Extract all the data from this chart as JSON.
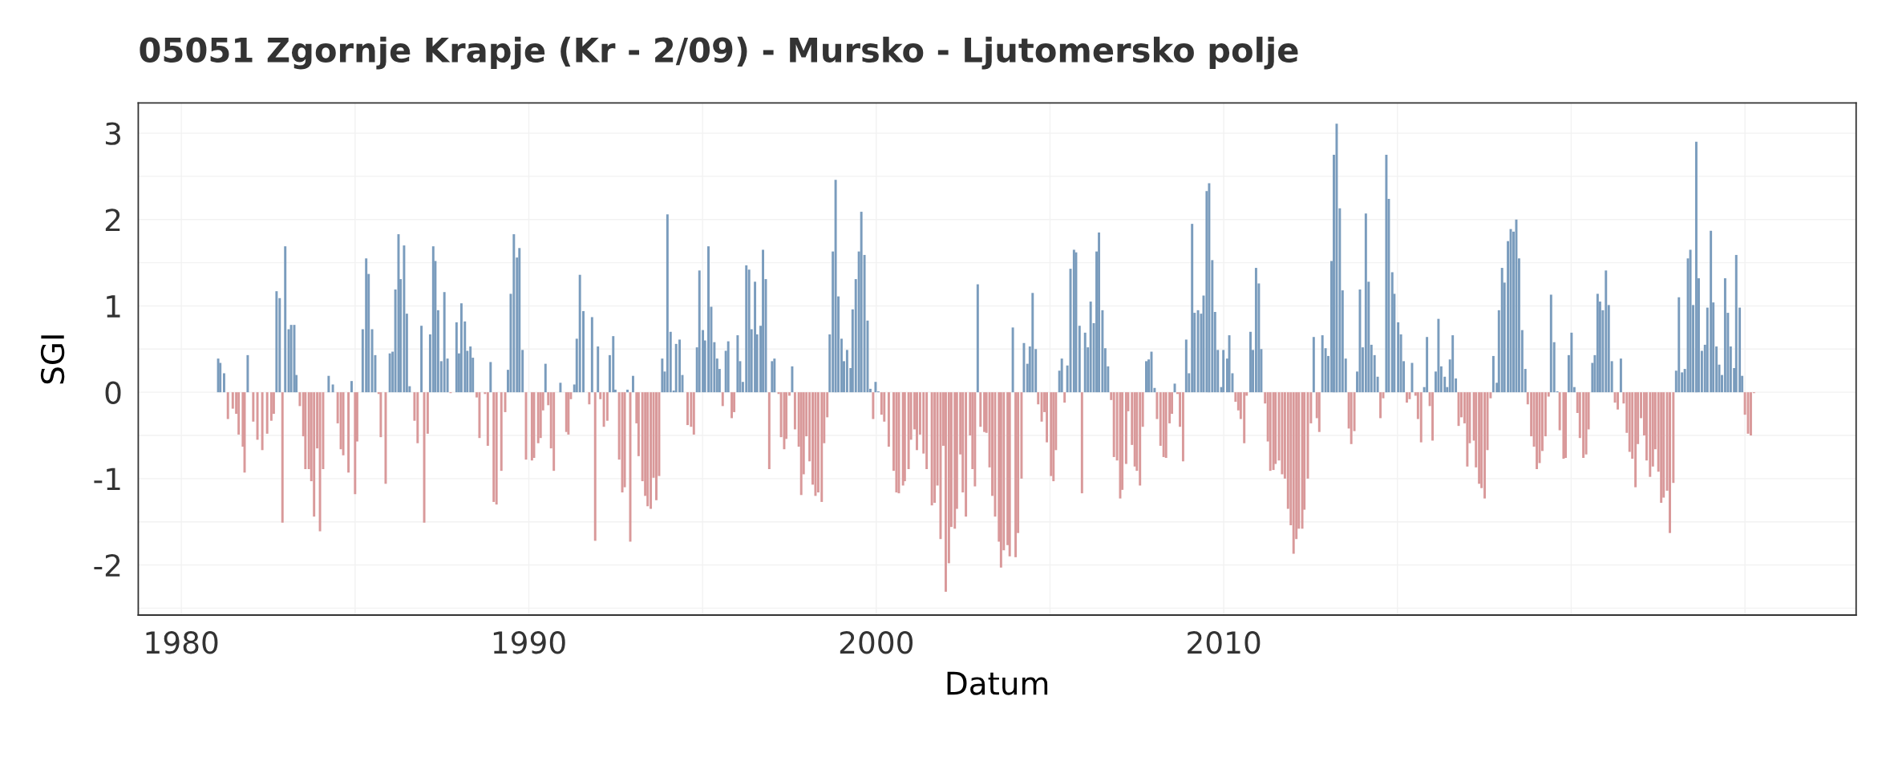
{
  "chart_data": {
    "type": "bar",
    "title": "05051 Zgornje Krapje (Kr - 2/09) - Mursko - Ljutomersko polje",
    "xlabel": "Datum",
    "ylabel": "SGI",
    "xlim": [
      1978.76,
      2028.2
    ],
    "xticks": [
      1980,
      {
        "value": 1985,
        "label": null
      },
      1990,
      {
        "value": 1995,
        "label": null
      },
      2000,
      {
        "value": 2005,
        "label": null
      },
      2010,
      {
        "value": 2015,
        "label": null
      },
      {
        "value": 2020,
        "label": null
      },
      {
        "value": 2025,
        "label": null
      }
    ],
    "ylim": [
      -2.58,
      3.35
    ],
    "yticks": [
      {
        "value": -2.5,
        "label": null
      },
      {
        "value": -2,
        "label": "-2"
      },
      {
        "value": -1.5,
        "label": null
      },
      {
        "value": -1,
        "label": "-1"
      },
      {
        "value": -0.5,
        "label": null
      },
      0,
      {
        "value": 0.5,
        "label": null
      },
      1,
      {
        "value": 1.5,
        "label": null
      },
      2,
      {
        "value": 2.5,
        "label": null
      },
      3
    ],
    "grid": true,
    "series": [
      {
        "color": "#7a9cbd",
        "x": [
          1981.06,
          1981.12,
          1981.23,
          1981.91,
          1982.74,
          1982.83,
          1982.99,
          1983.09,
          1983.16,
          1983.25,
          1983.31,
          1984.24,
          1984.36,
          1984.9,
          1985.22,
          1985.32,
          1985.39,
          1985.49,
          1985.58,
          1986.0,
          1986.08,
          1986.16,
          1986.25,
          1986.31,
          1986.41,
          1986.49,
          1986.57,
          1986.91,
          1987.16,
          1987.25,
          1987.31,
          1987.39,
          1987.48,
          1987.57,
          1987.66,
          1987.92,
          1987.99,
          1988.06,
          1988.16,
          1988.23,
          1988.32,
          1988.39,
          1988.9,
          1989.4,
          1989.48,
          1989.57,
          1989.66,
          1989.73,
          1989.82,
          1990.48,
          1990.91,
          1991.31,
          1991.38,
          1991.47,
          1991.57,
          1991.82,
          1991.99,
          1992.33,
          1992.43,
          1992.49,
          1992.84,
          1993.0,
          1993.84,
          1993.91,
          1993.99,
          1994.08,
          1994.17,
          1994.24,
          1994.34,
          1994.42,
          1994.84,
          1994.91,
          1995.01,
          1995.07,
          1995.17,
          1995.25,
          1995.34,
          1995.42,
          1995.49,
          1995.67,
          1995.74,
          1996.01,
          1996.08,
          1996.16,
          1996.26,
          1996.34,
          1996.41,
          1996.51,
          1996.57,
          1996.67,
          1996.74,
          1996.82,
          1997.0,
          1997.07,
          1997.58,
          1998.66,
          1998.75,
          1998.83,
          1998.91,
          1999.0,
          1999.07,
          1999.16,
          1999.26,
          1999.32,
          1999.41,
          1999.5,
          1999.57,
          1999.66,
          1999.75,
          1999.83,
          1999.98,
          2000.06,
          2002.92,
          2003.93,
          2004.25,
          2004.35,
          2004.42,
          2004.5,
          2004.59,
          2005.27,
          2005.34,
          2005.5,
          2005.59,
          2005.69,
          2005.75,
          2005.85,
          2006.01,
          2006.09,
          2006.17,
          2006.26,
          2006.34,
          2006.41,
          2006.51,
          2006.59,
          2006.67,
          2007.77,
          2007.84,
          2007.92,
          2008.01,
          2008.59,
          2008.92,
          2009.0,
          2009.09,
          2009.16,
          2009.26,
          2009.35,
          2009.42,
          2009.51,
          2009.58,
          2009.67,
          2009.75,
          2009.83,
          2009.93,
          2009.99,
          2010.1,
          2010.16,
          2010.25,
          2010.77,
          2010.84,
          2010.93,
          2011.01,
          2011.08,
          2012.59,
          2012.84,
          2012.93,
          2013.01,
          2013.1,
          2013.17,
          2013.25,
          2013.34,
          2013.42,
          2013.51,
          2013.84,
          2013.92,
          2014.0,
          2014.09,
          2014.17,
          2014.25,
          2014.34,
          2014.43,
          2014.68,
          2014.75,
          2014.85,
          2014.91,
          2015.02,
          2015.1,
          2015.18,
          2015.42,
          2015.77,
          2015.85,
          2016.1,
          2016.18,
          2016.26,
          2016.36,
          2016.43,
          2016.51,
          2016.59,
          2016.68,
          2017.76,
          2017.86,
          2017.92,
          2018.01,
          2018.08,
          2018.18,
          2018.26,
          2018.34,
          2018.42,
          2018.5,
          2018.59,
          2018.68,
          2019.42,
          2019.51,
          2019.6,
          2019.93,
          2020.01,
          2020.09,
          2020.61,
          2020.68,
          2020.76,
          2020.83,
          2020.91,
          2021.0,
          2021.08,
          2021.17,
          2021.43,
          2023.02,
          2023.1,
          2023.19,
          2023.27,
          2023.36,
          2023.43,
          2023.51,
          2023.6,
          2023.67,
          2023.76,
          2023.85,
          2023.92,
          2024.02,
          2024.09,
          2024.18,
          2024.26,
          2024.34,
          2024.43,
          2024.51,
          2024.59,
          2024.69,
          2024.75,
          2024.85,
          2024.92
        ],
        "values": [
          0.39,
          0.34,
          0.22,
          0.43,
          1.17,
          1.09,
          1.69,
          0.73,
          0.78,
          0.78,
          0.2,
          0.19,
          0.09,
          0.13,
          0.73,
          1.55,
          1.37,
          0.73,
          0.43,
          0.45,
          0.47,
          1.19,
          1.83,
          1.31,
          1.7,
          0.91,
          0.07,
          0.77,
          0.67,
          1.69,
          1.52,
          0.95,
          0.36,
          1.16,
          0.39,
          0.81,
          0.45,
          1.03,
          0.82,
          0.48,
          0.53,
          0.4,
          0.35,
          0.26,
          1.14,
          1.83,
          1.56,
          1.67,
          0.49,
          0.33,
          0.11,
          0.09,
          0.62,
          1.36,
          0.94,
          0.87,
          0.53,
          0.43,
          0.65,
          0.03,
          0.03,
          0.19,
          0.39,
          0.24,
          2.06,
          0.7,
          0.02,
          0.56,
          0.61,
          0.2,
          0.52,
          1.41,
          0.72,
          0.6,
          1.69,
          0.99,
          0.58,
          0.39,
          0.27,
          0.48,
          0.59,
          0.66,
          0.36,
          0.12,
          1.47,
          1.42,
          0.73,
          1.28,
          0.67,
          0.77,
          1.65,
          1.31,
          0.36,
          0.39,
          0.3,
          0.67,
          1.63,
          2.46,
          1.11,
          0.62,
          0.36,
          0.49,
          0.28,
          0.96,
          1.31,
          1.63,
          2.09,
          1.59,
          0.83,
          0.04,
          0.12,
          0.01,
          1.25,
          0.75,
          0.57,
          0.33,
          0.53,
          1.15,
          0.5,
          0.25,
          0.39,
          0.31,
          1.43,
          1.65,
          1.62,
          0.77,
          0.69,
          0.52,
          1.05,
          0.8,
          1.63,
          1.85,
          0.95,
          0.51,
          0.3,
          0.36,
          0.38,
          0.47,
          0.05,
          0.1,
          0.61,
          0.22,
          1.95,
          0.92,
          0.95,
          0.91,
          1.12,
          2.33,
          2.42,
          1.53,
          0.93,
          0.49,
          0.06,
          0.49,
          0.39,
          0.66,
          0.22,
          0.7,
          0.49,
          1.44,
          1.26,
          0.5,
          0.64,
          0.66,
          0.51,
          0.42,
          1.52,
          2.75,
          3.11,
          2.13,
          1.18,
          0.39,
          0.24,
          1.19,
          0.52,
          2.07,
          1.28,
          0.55,
          0.43,
          0.18,
          2.75,
          2.24,
          1.39,
          1.14,
          0.81,
          0.67,
          0.36,
          0.34,
          0.06,
          0.64,
          0.24,
          0.85,
          0.3,
          0.18,
          0.06,
          0.38,
          0.66,
          0.16,
          0.42,
          0.11,
          0.95,
          1.44,
          1.27,
          1.75,
          1.89,
          1.86,
          2.0,
          1.55,
          0.72,
          0.27,
          1.13,
          0.58,
          0.01,
          0.43,
          0.69,
          0.06,
          0.34,
          0.43,
          1.14,
          1.05,
          0.95,
          1.41,
          1.01,
          0.36,
          0.39,
          0.25,
          1.1,
          0.23,
          0.27,
          1.55,
          1.65,
          1.01,
          2.9,
          1.32,
          0.48,
          0.55,
          0.98,
          1.87,
          1.04,
          0.53,
          0.32,
          0.2,
          1.32,
          0.92,
          0.53,
          0.28,
          1.59,
          0.98,
          0.19
        ]
      },
      {
        "color": "#d9999a",
        "x": [
          1981.34,
          1981.48,
          1981.58,
          1981.65,
          1981.77,
          1981.82,
          1982.07,
          1982.19,
          1982.33,
          1982.47,
          1982.59,
          1982.66,
          1982.91,
          1983.41,
          1983.51,
          1983.57,
          1983.67,
          1983.74,
          1983.82,
          1983.91,
          1983.99,
          1984.08,
          1984.5,
          1984.59,
          1984.66,
          1984.81,
          1985.0,
          1985.06,
          1985.68,
          1985.74,
          1985.88,
          1986.71,
          1986.8,
          1986.99,
          1987.09,
          1987.75,
          1988.5,
          1988.58,
          1988.74,
          1988.82,
          1988.99,
          1989.07,
          1989.21,
          1989.32,
          1989.92,
          1990.09,
          1990.15,
          1990.27,
          1990.34,
          1990.41,
          1990.56,
          1990.64,
          1990.72,
          1991.08,
          1991.14,
          1991.21,
          1991.74,
          1991.91,
          1992.06,
          1992.16,
          1992.26,
          1992.6,
          1992.69,
          1992.76,
          1992.92,
          1993.1,
          1993.16,
          1993.27,
          1993.35,
          1993.42,
          1993.51,
          1993.59,
          1993.67,
          1993.75,
          1994.57,
          1994.67,
          1994.75,
          1995.58,
          1995.84,
          1995.91,
          1996.92,
          1997.19,
          1997.26,
          1997.35,
          1997.41,
          1997.5,
          1997.66,
          1997.77,
          1997.84,
          1997.91,
          1997.99,
          1998.08,
          1998.17,
          1998.25,
          1998.33,
          1998.43,
          1998.5,
          1998.59,
          1999.91,
          2000.15,
          2000.23,
          2000.36,
          2000.5,
          2000.58,
          2000.65,
          2000.77,
          2000.82,
          2000.93,
          2001.0,
          2001.1,
          2001.17,
          2001.26,
          2001.36,
          2001.45,
          2001.6,
          2001.68,
          2001.76,
          2001.85,
          2001.93,
          2002.0,
          2002.09,
          2002.16,
          2002.26,
          2002.32,
          2002.42,
          2002.49,
          2002.58,
          2002.7,
          2002.77,
          2002.84,
          2003.0,
          2003.11,
          2003.17,
          2003.26,
          2003.34,
          2003.42,
          2003.53,
          2003.59,
          2003.67,
          2003.78,
          2003.84,
          2004.01,
          2004.08,
          2004.18,
          2004.66,
          2004.76,
          2004.84,
          2004.91,
          2005.03,
          2005.1,
          2005.17,
          2005.42,
          2005.92,
          2006.76,
          2006.84,
          2006.93,
          2007.02,
          2007.08,
          2007.19,
          2007.25,
          2007.36,
          2007.44,
          2007.5,
          2007.59,
          2007.67,
          2008.08,
          2008.18,
          2008.27,
          2008.34,
          2008.44,
          2008.51,
          2008.67,
          2008.74,
          2008.83,
          2010.34,
          2010.42,
          2010.49,
          2010.59,
          2010.66,
          2011.19,
          2011.27,
          2011.34,
          2011.43,
          2011.49,
          2011.59,
          2011.68,
          2011.76,
          2011.85,
          2011.93,
          2012.01,
          2012.09,
          2012.16,
          2012.26,
          2012.32,
          2012.42,
          2012.51,
          2012.68,
          2012.75,
          2013.6,
          2013.67,
          2013.76,
          2014.51,
          2014.59,
          2015.27,
          2015.35,
          2015.52,
          2015.59,
          2015.68,
          2015.93,
          2016.01,
          2016.76,
          2016.84,
          2016.93,
          2017.01,
          2017.08,
          2017.2,
          2017.26,
          2017.35,
          2017.42,
          2017.51,
          2017.59,
          2017.68,
          2018.75,
          2018.85,
          2018.93,
          2019.01,
          2019.09,
          2019.17,
          2019.26,
          2019.35,
          2019.67,
          2019.78,
          2019.84,
          2020.18,
          2020.25,
          2020.35,
          2020.43,
          2020.5,
          2021.26,
          2021.34,
          2021.51,
          2021.6,
          2021.68,
          2021.76,
          2021.85,
          2021.92,
          2022.01,
          2022.1,
          2022.17,
          2022.27,
          2022.35,
          2022.42,
          2022.51,
          2022.59,
          2022.66,
          2022.76,
          2022.84,
          2022.94,
          2025.0,
          2025.09,
          2025.17,
          2025.26
        ],
        "values": [
          -0.31,
          -0.19,
          -0.25,
          -0.49,
          -0.63,
          -0.93,
          -0.34,
          -0.55,
          -0.67,
          -0.48,
          -0.33,
          -0.25,
          -1.51,
          -0.16,
          -0.51,
          -0.89,
          -0.89,
          -1.03,
          -1.44,
          -0.65,
          -1.61,
          -0.89,
          -0.36,
          -0.66,
          -0.73,
          -0.93,
          -1.18,
          -0.57,
          -0.02,
          -0.52,
          -1.06,
          -0.33,
          -0.59,
          -1.51,
          -0.48,
          -0.01,
          -0.06,
          -0.53,
          -0.02,
          -0.62,
          -1.27,
          -1.3,
          -0.91,
          -0.23,
          -0.78,
          -0.79,
          -0.76,
          -0.59,
          -0.53,
          -0.21,
          -0.15,
          -0.65,
          -0.91,
          -0.46,
          -0.49,
          -0.08,
          -0.14,
          -1.72,
          -0.08,
          -0.4,
          -0.33,
          -0.78,
          -1.16,
          -1.1,
          -1.73,
          -0.36,
          -0.74,
          -1.03,
          -1.2,
          -1.32,
          -1.35,
          -0.99,
          -1.25,
          -0.97,
          -0.38,
          -0.4,
          -0.49,
          -0.16,
          -0.3,
          -0.23,
          -0.89,
          -0.02,
          -0.52,
          -0.66,
          -0.54,
          -0.04,
          -0.43,
          -0.63,
          -1.19,
          -0.95,
          -0.51,
          -0.8,
          -1.07,
          -1.2,
          -1.16,
          -1.27,
          -0.59,
          -0.29,
          -0.31,
          -0.26,
          -0.34,
          -0.63,
          -0.91,
          -1.16,
          -1.17,
          -1.08,
          -1.03,
          -0.89,
          -0.55,
          -0.43,
          -0.67,
          -0.49,
          -0.71,
          -0.89,
          -1.31,
          -1.28,
          -1.08,
          -1.7,
          -0.62,
          -2.31,
          -1.98,
          -1.56,
          -1.58,
          -1.35,
          -0.72,
          -1.16,
          -1.44,
          -0.5,
          -0.89,
          -1.09,
          -0.4,
          -0.46,
          -0.47,
          -0.87,
          -1.2,
          -1.44,
          -1.73,
          -2.03,
          -1.83,
          -1.77,
          -1.9,
          -1.91,
          -1.63,
          -1.0,
          -0.14,
          -0.34,
          -0.23,
          -0.58,
          -0.97,
          -1.03,
          -0.67,
          -0.12,
          -1.17,
          -0.09,
          -0.75,
          -0.79,
          -1.23,
          -1.13,
          -0.83,
          -0.22,
          -0.61,
          -0.86,
          -0.91,
          -1.08,
          -0.4,
          -0.31,
          -0.62,
          -0.75,
          -0.76,
          -0.36,
          -0.25,
          -0.02,
          -0.4,
          -0.8,
          -0.11,
          -0.21,
          -0.31,
          -0.59,
          -0.04,
          -0.13,
          -0.57,
          -0.91,
          -0.9,
          -0.83,
          -0.79,
          -0.95,
          -1.0,
          -1.35,
          -1.54,
          -1.87,
          -1.7,
          -1.58,
          -1.58,
          -1.36,
          -1.0,
          -0.36,
          -0.3,
          -0.46,
          -0.42,
          -0.6,
          -0.45,
          -0.3,
          -0.07,
          -0.12,
          -0.08,
          -0.04,
          -0.31,
          -0.58,
          -0.16,
          -0.56,
          -0.39,
          -0.29,
          -0.36,
          -0.86,
          -0.59,
          -0.56,
          -0.87,
          -1.06,
          -1.11,
          -1.23,
          -0.67,
          -0.07,
          -0.14,
          -0.51,
          -0.63,
          -0.89,
          -0.82,
          -0.68,
          -0.51,
          -0.05,
          -0.44,
          -0.77,
          -0.76,
          -0.24,
          -0.53,
          -0.76,
          -0.72,
          -0.43,
          -0.12,
          -0.2,
          -0.13,
          -0.47,
          -0.69,
          -0.77,
          -1.1,
          -0.6,
          -0.3,
          -0.5,
          -0.79,
          -0.98,
          -0.86,
          -0.66,
          -0.92,
          -1.28,
          -1.22,
          -1.14,
          -1.63,
          -1.05,
          -0.26,
          -0.48,
          -0.5,
          -0.01
        ]
      }
    ]
  }
}
